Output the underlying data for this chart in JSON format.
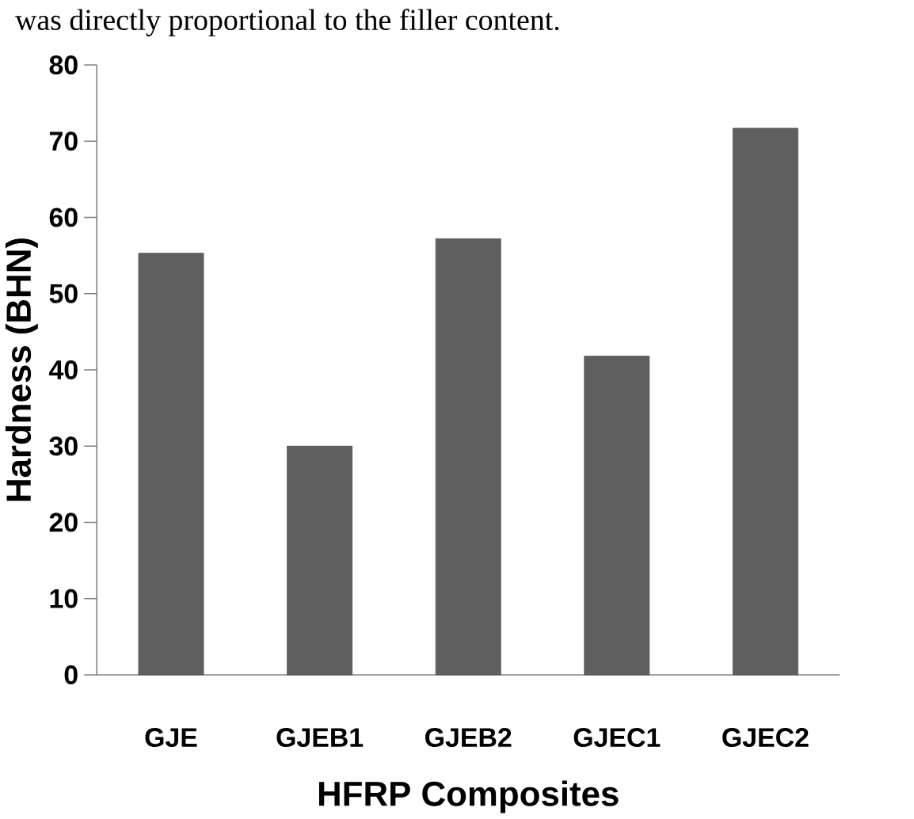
{
  "chart_data": {
    "type": "bar",
    "annotations": [
      "was directly proportional to the filler content."
    ],
    "xlabel": "HFRP Composites",
    "ylabel": "Hardness (BHN)",
    "categories": [
      "GJE",
      "GJEB1",
      "GJEB2",
      "GJEC1",
      "GJEC2"
    ],
    "values": [
      55.3,
      30,
      57.2,
      41.8,
      71.7
    ],
    "color": "#5f5f5f",
    "ylim": [
      0,
      80
    ],
    "yticks": [
      0,
      10,
      20,
      30,
      40,
      50,
      60,
      70,
      80
    ]
  }
}
